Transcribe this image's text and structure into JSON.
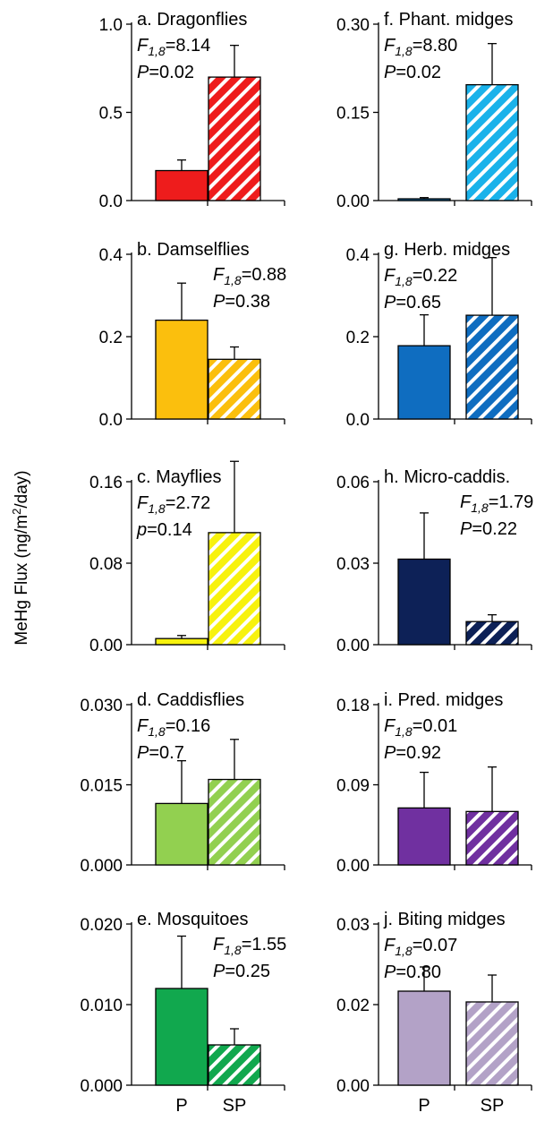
{
  "figure": {
    "ylabel": "MeHg Flux (ng/m",
    "ylabel_sup": "2",
    "ylabel_tail": "/day)"
  },
  "chart_data": [
    {
      "type": "bar",
      "title": "a. Dragonflies",
      "stat_var": "F",
      "stat_sub": "1,8",
      "stat_f": "=8.14",
      "stat_p_var": "P",
      "stat_p": "=0.02",
      "categories": [
        "P",
        "SP"
      ],
      "values": [
        0.17,
        0.7
      ],
      "errors": [
        0.06,
        0.18
      ],
      "ylim": [
        0,
        1.0
      ],
      "yticks": [
        "0.0",
        "0.5",
        "1.0"
      ],
      "colors": [
        "#ee1c1c",
        "#ee1c1c"
      ],
      "hatched": [
        false,
        true
      ],
      "stat_align": "left"
    },
    {
      "type": "bar",
      "title": "b. Damselflies",
      "stat_var": "F",
      "stat_sub": "1,8",
      "stat_f": "=0.88",
      "stat_p_var": "P",
      "stat_p": "=0.38",
      "categories": [
        "P",
        "SP"
      ],
      "values": [
        0.24,
        0.145
      ],
      "errors": [
        0.09,
        0.03
      ],
      "ylim": [
        0,
        0.4
      ],
      "yticks": [
        "0.0",
        "0.2",
        "0.4"
      ],
      "colors": [
        "#fbbf0d",
        "#fbbf0d"
      ],
      "hatched": [
        false,
        true
      ],
      "stat_align": "right"
    },
    {
      "type": "bar",
      "title": "c. Mayflies",
      "stat_var": "F",
      "stat_sub": "1,8",
      "stat_f": "=2.72",
      "stat_p_var": "p",
      "stat_p": "=0.14",
      "categories": [
        "P",
        "SP"
      ],
      "values": [
        0.006,
        0.11
      ],
      "errors": [
        0.003,
        0.07
      ],
      "ylim": [
        0,
        0.16
      ],
      "yticks": [
        "0.00",
        "0.08",
        "0.16"
      ],
      "colors": [
        "#f7f20e",
        "#f7f20e"
      ],
      "hatched": [
        false,
        true
      ],
      "stat_align": "left"
    },
    {
      "type": "bar",
      "title": "d. Caddisflies",
      "stat_var": "F",
      "stat_sub": "1,8",
      "stat_f": "=0.16",
      "stat_p_var": "P",
      "stat_p": "=0.7",
      "categories": [
        "P",
        "SP"
      ],
      "values": [
        0.0115,
        0.016
      ],
      "errors": [
        0.008,
        0.0075
      ],
      "ylim": [
        0,
        0.03
      ],
      "yticks": [
        "0.000",
        "0.015",
        "0.030"
      ],
      "colors": [
        "#92d050",
        "#92d050"
      ],
      "hatched": [
        false,
        true
      ],
      "stat_align": "left"
    },
    {
      "type": "bar",
      "title": "e. Mosquitoes",
      "stat_var": "F",
      "stat_sub": "1,8",
      "stat_f": "=1.55",
      "stat_p_var": "P",
      "stat_p": "=0.25",
      "categories": [
        "P",
        "SP"
      ],
      "values": [
        0.012,
        0.005
      ],
      "errors": [
        0.0065,
        0.002
      ],
      "ylim": [
        0,
        0.02
      ],
      "yticks": [
        "0.000",
        "0.010",
        "0.020"
      ],
      "colors": [
        "#11a84e",
        "#11a84e"
      ],
      "hatched": [
        false,
        true
      ],
      "stat_align": "right"
    },
    {
      "type": "bar",
      "title": "f. Phant. midges",
      "stat_var": "F",
      "stat_sub": "1,8",
      "stat_f": "=8.80",
      "stat_p_var": "P",
      "stat_p": "=0.02",
      "categories": [
        "P",
        "SP"
      ],
      "values": [
        0.003,
        0.197
      ],
      "errors": [
        0.002,
        0.07
      ],
      "ylim": [
        0,
        0.3
      ],
      "yticks": [
        "0.00",
        "0.15",
        "0.30"
      ],
      "colors": [
        "#0f7abf",
        "#1ab2ea"
      ],
      "hatched": [
        false,
        true
      ],
      "stat_align": "left"
    },
    {
      "type": "bar",
      "title": "g. Herb. midges",
      "stat_var": "F",
      "stat_sub": "1,8",
      "stat_f": "=0.22",
      "stat_p_var": "P",
      "stat_p": "=0.65",
      "categories": [
        "P",
        "SP"
      ],
      "values": [
        0.178,
        0.252
      ],
      "errors": [
        0.075,
        0.14
      ],
      "ylim": [
        0,
        0.4
      ],
      "yticks": [
        "0.0",
        "0.2",
        "0.4"
      ],
      "colors": [
        "#0f6dc0",
        "#0f6dc0"
      ],
      "hatched": [
        false,
        true
      ],
      "stat_align": "left"
    },
    {
      "type": "bar",
      "title": "h. Micro-caddis.",
      "stat_var": "F",
      "stat_sub": "1,8",
      "stat_f": "=1.79",
      "stat_p_var": "P",
      "stat_p": "=0.22",
      "categories": [
        "P",
        "SP"
      ],
      "values": [
        0.0315,
        0.0085
      ],
      "errors": [
        0.017,
        0.0025
      ],
      "ylim": [
        0,
        0.06
      ],
      "yticks": [
        "0.00",
        "0.03",
        "0.06"
      ],
      "colors": [
        "#0d2157",
        "#0d2157"
      ],
      "hatched": [
        false,
        true
      ],
      "stat_align": "right"
    },
    {
      "type": "bar",
      "title": "i. Pred. midges",
      "stat_var": "F",
      "stat_sub": "1,8",
      "stat_f": "=0.01",
      "stat_p_var": "P",
      "stat_p": "=0.92",
      "categories": [
        "P",
        "SP"
      ],
      "values": [
        0.064,
        0.06
      ],
      "errors": [
        0.04,
        0.05
      ],
      "ylim": [
        0,
        0.18
      ],
      "yticks": [
        "0.00",
        "0.09",
        "0.18"
      ],
      "colors": [
        "#7030a0",
        "#7030a0"
      ],
      "hatched": [
        false,
        true
      ],
      "stat_align": "left"
    },
    {
      "type": "bar",
      "title": "j. Biting midges",
      "stat_var": "F",
      "stat_sub": "1,8",
      "stat_f": "=0.07",
      "stat_p_var": "P",
      "stat_p": "=0.80",
      "categories": [
        "P",
        "SP"
      ],
      "values": [
        0.0175,
        0.0155
      ],
      "errors": [
        0.0045,
        0.005
      ],
      "ylim": [
        0,
        0.03
      ],
      "yticks": [
        "0.00",
        "0.02",
        "0.03"
      ],
      "colors": [
        "#b3a2c7",
        "#b3a2c7"
      ],
      "hatched": [
        false,
        true
      ],
      "stat_align": "left"
    }
  ]
}
